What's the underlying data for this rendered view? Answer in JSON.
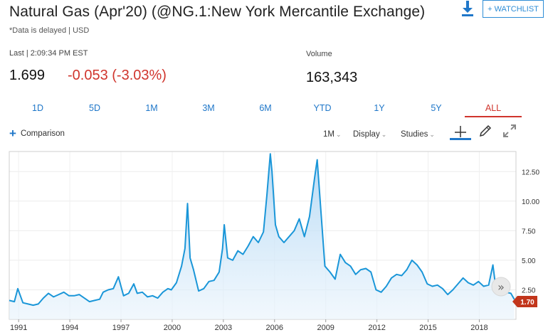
{
  "header": {
    "title": "Natural Gas (Apr'20) (@NG.1:New York Mercantile Exchange)",
    "delayed_note": "*Data is delayed | USD",
    "watchlist_label": "+ WATCHLIST"
  },
  "quote": {
    "last_label": "Last | 2:09:34 PM EST",
    "price": "1.699",
    "change": "-0.053 (-3.03%)",
    "volume_label": "Volume",
    "volume": "163,343"
  },
  "ranges": [
    "1D",
    "5D",
    "1M",
    "3M",
    "6M",
    "YTD",
    "1Y",
    "5Y",
    "ALL"
  ],
  "active_range": "ALL",
  "toolbar": {
    "comparison_label": "Comparison",
    "interval_label": "1M",
    "display_label": "Display",
    "studies_label": "Studies"
  },
  "colors": {
    "accent": "#1f77c9",
    "negative": "#d0352d",
    "line": "#1a96d8",
    "area": "#cfe6f8",
    "price_tag": "#c2361c"
  },
  "icons": [
    "download-icon",
    "plus-icon",
    "crosshair-icon",
    "pencil-icon",
    "expand-icon",
    "double-chevron-right-icon"
  ],
  "chart_data": {
    "type": "area",
    "x_tick_labels": [
      "1991",
      "1994",
      "1997",
      "2000",
      "2003",
      "2006",
      "2009",
      "2012",
      "2015",
      "2018"
    ],
    "y_tick_labels": [
      "2.50",
      "5.00",
      "7.50",
      "10.00",
      "12.50"
    ],
    "ylim": [
      0,
      14.2
    ],
    "xlim": [
      1990.5,
      2020.2
    ],
    "last_price_label": "1.70",
    "grid": true,
    "series": [
      {
        "x": [
          1990.5,
          1990.8,
          1991.0,
          1991.3,
          1991.6,
          1991.9,
          1992.2,
          1992.5,
          1992.8,
          1993.1,
          1993.4,
          1993.7,
          1994.0,
          1994.3,
          1994.6,
          1994.9,
          1995.2,
          1995.5,
          1995.8,
          1996.0,
          1996.3,
          1996.6,
          1996.9,
          1997.2,
          1997.5,
          1997.8,
          1998.0,
          1998.3,
          1998.6,
          1998.9,
          1999.2,
          1999.5,
          1999.8,
          2000.0,
          2000.3,
          2000.6,
          2000.8,
          2000.95,
          2001.1,
          2001.3,
          2001.6,
          2001.9,
          2002.2,
          2002.5,
          2002.8,
          2003.0,
          2003.1,
          2003.3,
          2003.6,
          2003.9,
          2004.2,
          2004.5,
          2004.8,
          2005.1,
          2005.4,
          2005.6,
          2005.8,
          2005.9,
          2006.1,
          2006.3,
          2006.6,
          2006.9,
          2007.2,
          2007.5,
          2007.8,
          2008.1,
          2008.4,
          2008.55,
          2008.8,
          2009.0,
          2009.3,
          2009.6,
          2009.9,
          2010.2,
          2010.5,
          2010.8,
          2011.1,
          2011.4,
          2011.7,
          2012.0,
          2012.3,
          2012.6,
          2012.9,
          2013.2,
          2013.5,
          2013.8,
          2014.1,
          2014.4,
          2014.7,
          2015.0,
          2015.3,
          2015.6,
          2015.9,
          2016.2,
          2016.5,
          2016.8,
          2017.1,
          2017.4,
          2017.7,
          2018.0,
          2018.3,
          2018.6,
          2018.85,
          2019.0,
          2019.3,
          2019.6,
          2019.9,
          2020.1
        ],
        "y": [
          1.6,
          1.5,
          2.6,
          1.4,
          1.3,
          1.2,
          1.3,
          1.8,
          2.2,
          1.9,
          2.1,
          2.3,
          2.0,
          2.0,
          2.1,
          1.8,
          1.5,
          1.6,
          1.7,
          2.3,
          2.5,
          2.6,
          3.6,
          2.0,
          2.2,
          3.0,
          2.2,
          2.3,
          1.9,
          2.0,
          1.8,
          2.3,
          2.6,
          2.5,
          3.1,
          4.5,
          6.0,
          9.8,
          5.2,
          4.2,
          2.4,
          2.6,
          3.2,
          3.3,
          4.0,
          6.0,
          8.0,
          5.2,
          5.0,
          5.8,
          5.5,
          6.2,
          7.0,
          6.5,
          7.4,
          10.5,
          14.0,
          12.5,
          8.0,
          7.0,
          6.5,
          7.0,
          7.5,
          8.5,
          7.0,
          8.7,
          12.0,
          13.5,
          8.5,
          4.5,
          4.0,
          3.4,
          5.5,
          4.8,
          4.5,
          3.8,
          4.2,
          4.3,
          4.0,
          2.5,
          2.3,
          2.8,
          3.5,
          3.8,
          3.7,
          4.2,
          5.0,
          4.6,
          4.0,
          3.0,
          2.8,
          2.9,
          2.6,
          2.1,
          2.5,
          3.0,
          3.5,
          3.1,
          2.9,
          3.2,
          2.8,
          2.9,
          4.6,
          2.9,
          2.7,
          2.3,
          2.2,
          1.7
        ]
      }
    ]
  }
}
